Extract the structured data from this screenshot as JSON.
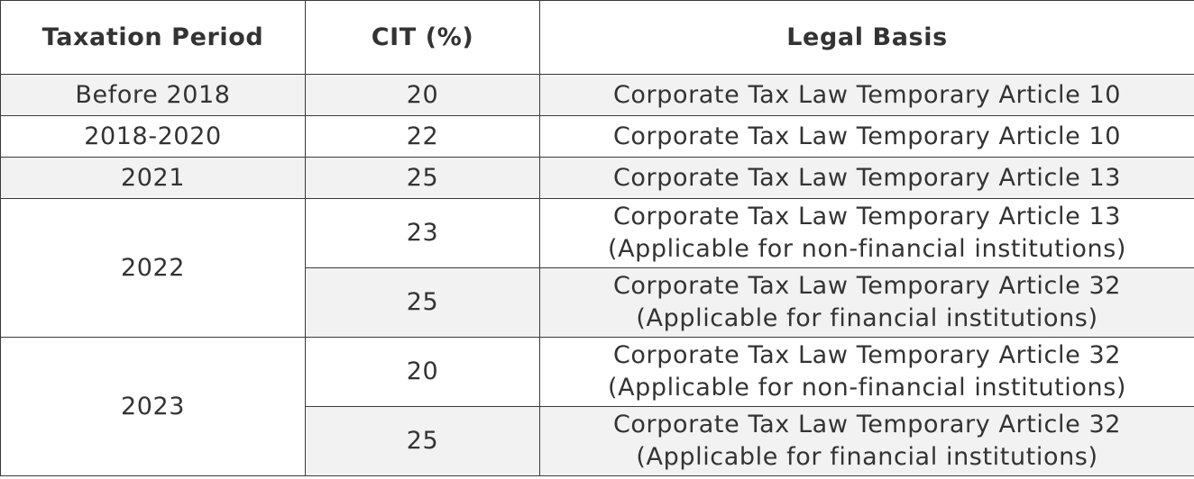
{
  "table": {
    "header": [
      "Taxation Period",
      "CIT (%)",
      "Legal Basis"
    ],
    "rows": [
      {
        "period": "Before 2018",
        "rates": [
          {
            "cit": 20,
            "basis": [
              "Corporate Tax Law Temporary Article 10"
            ]
          }
        ]
      },
      {
        "period": "2018-2020",
        "rates": [
          {
            "cit": 22,
            "basis": [
              "Corporate Tax Law Temporary Article 10"
            ]
          }
        ]
      },
      {
        "period": "2021",
        "rates": [
          {
            "cit": 25,
            "basis": [
              "Corporate Tax Law Temporary Article 13"
            ]
          }
        ]
      },
      {
        "period": "2022",
        "rates": [
          {
            "cit": 23,
            "basis": [
              "Corporate Tax Law Temporary Article 13",
              "(Applicable for non-financial institutions)"
            ]
          },
          {
            "cit": 25,
            "basis": [
              "Corporate Tax Law Temporary Article 32",
              "(Applicable for financial institutions)"
            ]
          }
        ]
      },
      {
        "period": "2023",
        "rates": [
          {
            "cit": 20,
            "basis": [
              "Corporate Tax Law Temporary Article 32",
              "(Applicable for non-financial institutions)"
            ]
          },
          {
            "cit": 25,
            "basis": [
              "Corporate Tax Law Temporary Article 32",
              "(Applicable for financial institutions)"
            ]
          }
        ]
      }
    ]
  }
}
